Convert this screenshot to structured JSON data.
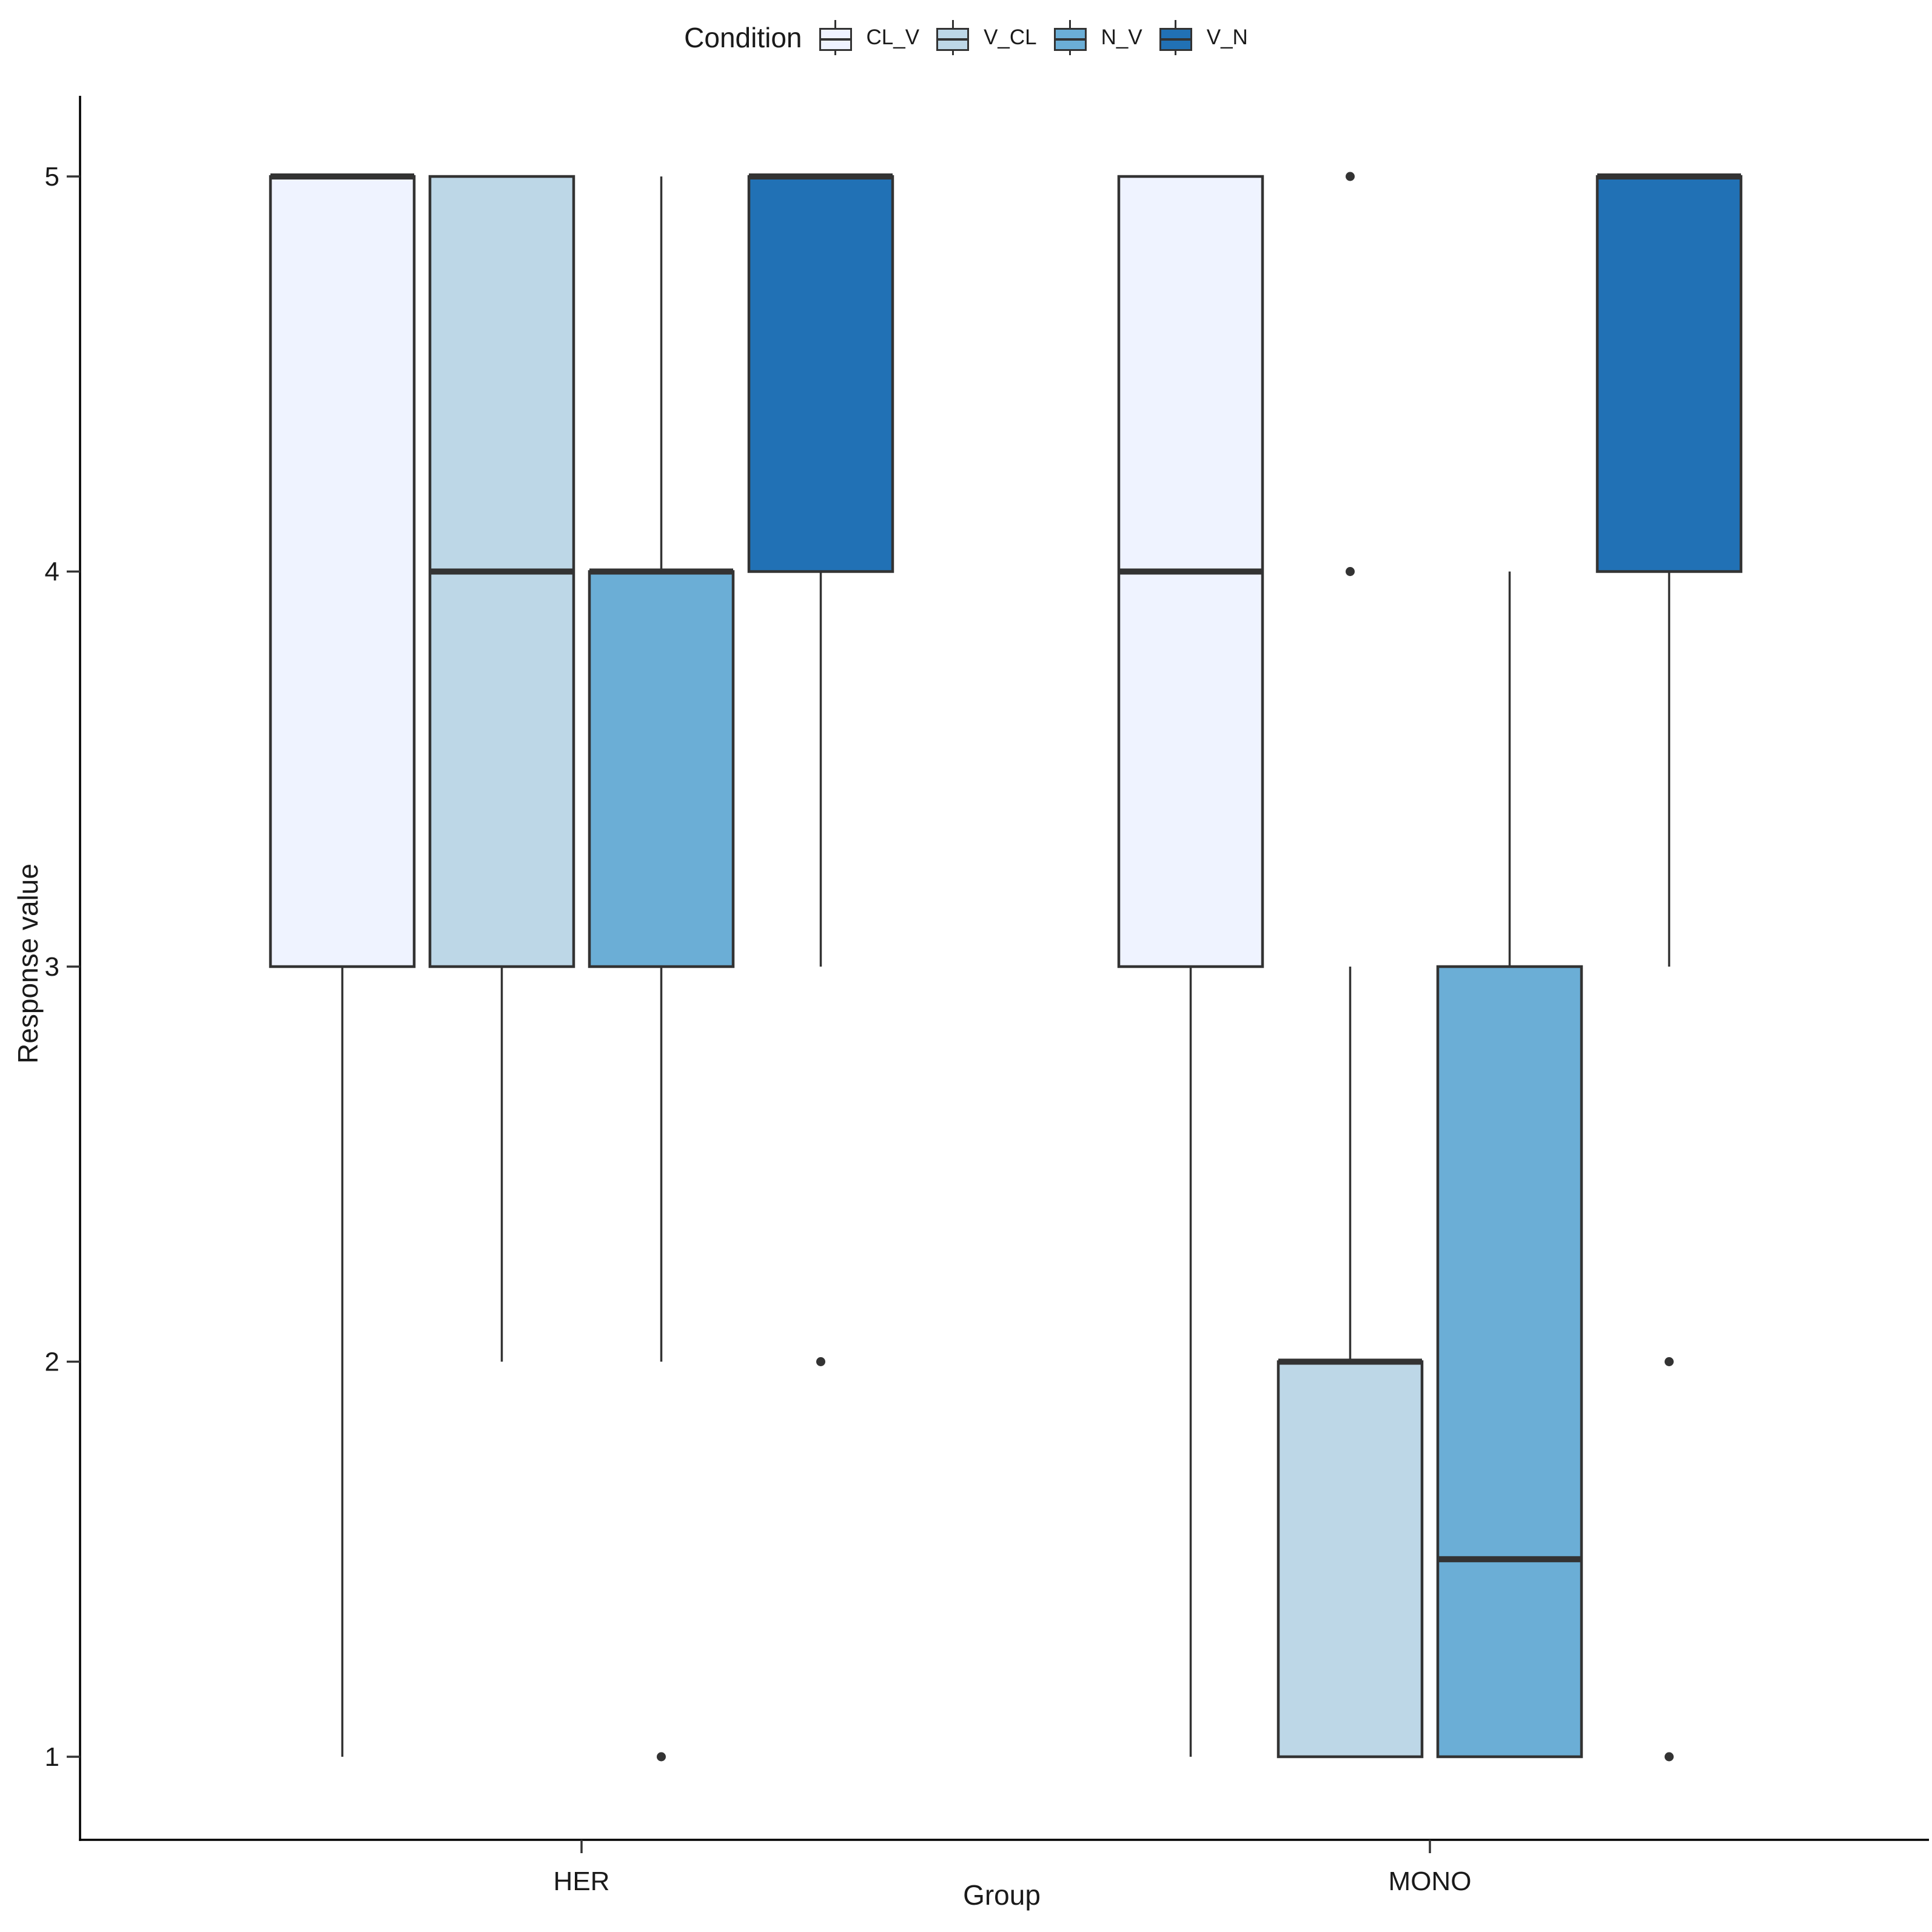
{
  "colors": {
    "box_stroke": "#333333",
    "median_line": "#333333",
    "whisker": "#333333",
    "outlier_point": "#333333",
    "axis_line": "#000000",
    "text": "#1a1a1a",
    "background": "#ffffff"
  },
  "chart_data": {
    "type": "boxplot",
    "title": "",
    "xlabel": "Group",
    "ylabel": "Response value",
    "legend_title": "Condition",
    "legend_position": "top",
    "grid": "off",
    "ylim": [
      0.8,
      5.2
    ],
    "y_ticks": [
      1,
      2,
      3,
      4,
      5
    ],
    "groups": [
      "HER",
      "MONO"
    ],
    "conditions": [
      {
        "name": "CL_V",
        "fill": "#EFF3FF"
      },
      {
        "name": "V_CL",
        "fill": "#BDD7E7"
      },
      {
        "name": "N_V",
        "fill": "#6BAED6"
      },
      {
        "name": "V_N",
        "fill": "#2171B5"
      }
    ],
    "boxes": [
      {
        "group": "HER",
        "condition": "CL_V",
        "whisker_low": 1,
        "q1": 3,
        "median": 5,
        "q3": 5,
        "whisker_high": 5,
        "outliers": []
      },
      {
        "group": "HER",
        "condition": "V_CL",
        "whisker_low": 2,
        "q1": 3,
        "median": 4,
        "q3": 5,
        "whisker_high": 5,
        "outliers": []
      },
      {
        "group": "HER",
        "condition": "N_V",
        "whisker_low": 2,
        "q1": 3,
        "median": 4,
        "q3": 4,
        "whisker_high": 5,
        "outliers": [
          1
        ]
      },
      {
        "group": "HER",
        "condition": "V_N",
        "whisker_low": 3,
        "q1": 4,
        "median": 5,
        "q3": 5,
        "whisker_high": 5,
        "outliers": [
          2
        ]
      },
      {
        "group": "MONO",
        "condition": "CL_V",
        "whisker_low": 1,
        "q1": 3,
        "median": 4,
        "q3": 5,
        "whisker_high": 5,
        "outliers": []
      },
      {
        "group": "MONO",
        "condition": "V_CL",
        "whisker_low": 1,
        "q1": 1,
        "median": 2,
        "q3": 2,
        "whisker_high": 3,
        "outliers": [
          4,
          5
        ]
      },
      {
        "group": "MONO",
        "condition": "N_V",
        "whisker_low": 1,
        "q1": 1,
        "median": 1.5,
        "q3": 3,
        "whisker_high": 4,
        "outliers": []
      },
      {
        "group": "MONO",
        "condition": "V_N",
        "whisker_low": 3,
        "q1": 4,
        "median": 5,
        "q3": 5,
        "whisker_high": 5,
        "outliers": [
          1,
          2
        ]
      }
    ]
  }
}
